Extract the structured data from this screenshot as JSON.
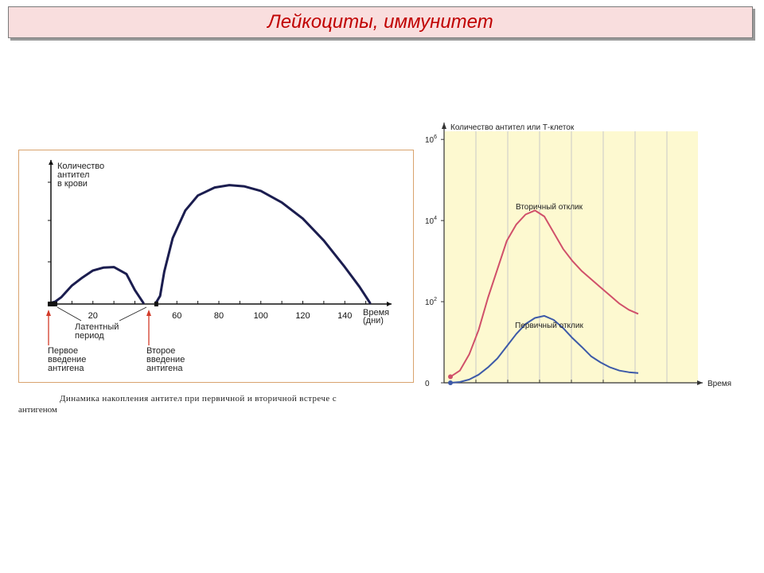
{
  "page": {
    "title": "Лейкоциты, иммунитет"
  },
  "left_figure": {
    "caption_line1": "Динамика накопления антител при первичной и вторичной встрече с",
    "caption_line2": "антигеном",
    "annotations": {
      "latent": [
        "Латентный",
        "период"
      ],
      "first": [
        "Первое",
        "введение",
        "антигена"
      ],
      "second": [
        "Второе",
        "введение",
        "антигена"
      ]
    }
  },
  "chart_data": [
    {
      "type": "line",
      "title": "",
      "ylabel": [
        "Количество",
        "антител",
        "в крови"
      ],
      "xlabel": [
        "Время",
        "(дни)"
      ],
      "xlim": [
        0,
        160
      ],
      "x_ticks": [
        20,
        60,
        80,
        100,
        120,
        140
      ],
      "series": [
        {
          "x": [
            0,
            2,
            5,
            10,
            15,
            20,
            25,
            30,
            36,
            40,
            44
          ],
          "y": [
            0.1,
            0.2,
            0.6,
            1.6,
            2.3,
            2.9,
            3.15,
            3.2,
            2.6,
            1.2,
            0.1
          ]
        },
        {
          "x": [
            50,
            52,
            54,
            58,
            64,
            70,
            78,
            85,
            92,
            100,
            110,
            120,
            130,
            140,
            147,
            152
          ],
          "y": [
            0.1,
            0.7,
            2.8,
            5.7,
            8.1,
            9.4,
            10.1,
            10.3,
            10.2,
            9.8,
            8.8,
            7.4,
            5.5,
            3.2,
            1.5,
            0.1
          ]
        }
      ],
      "markers": [
        0,
        50
      ]
    },
    {
      "type": "line",
      "title": "",
      "ylabel": "Количество антител или Т-клеток",
      "xlabel": "Время",
      "y_scale": "log",
      "y_ticks": [
        {
          "base": "0",
          "exp": ""
        },
        {
          "base": "10",
          "exp": "2"
        },
        {
          "base": "10",
          "exp": "4"
        },
        {
          "base": "10",
          "exp": "6"
        }
      ],
      "grid": true,
      "background": "#fdf9d0",
      "series": [
        {
          "name": "Вторичный отклик",
          "color": "#d0506a",
          "x": [
            0,
            0.5,
            1,
            1.5,
            2,
            2.5,
            3,
            3.5,
            4,
            4.5,
            5,
            5.5,
            6,
            6.5,
            7,
            7.5,
            8,
            8.5,
            9,
            9.5,
            10
          ],
          "y": [
            0.15,
            0.3,
            0.7,
            1.3,
            2.1,
            2.8,
            3.5,
            3.9,
            4.15,
            4.25,
            4.1,
            3.7,
            3.3,
            3.0,
            2.75,
            2.55,
            2.35,
            2.15,
            1.95,
            1.8,
            1.7
          ]
        },
        {
          "name": "Первичный отклик",
          "color": "#3d5aa8",
          "x": [
            0,
            0.5,
            1,
            1.5,
            2,
            2.5,
            3,
            3.5,
            4,
            4.5,
            5,
            5.5,
            6,
            6.5,
            7,
            7.5,
            8,
            8.5,
            9,
            9.5,
            10
          ],
          "y": [
            0,
            0.02,
            0.08,
            0.2,
            0.38,
            0.6,
            0.9,
            1.2,
            1.45,
            1.6,
            1.65,
            1.55,
            1.35,
            1.1,
            0.88,
            0.65,
            0.5,
            0.38,
            0.3,
            0.26,
            0.24
          ]
        }
      ]
    }
  ]
}
